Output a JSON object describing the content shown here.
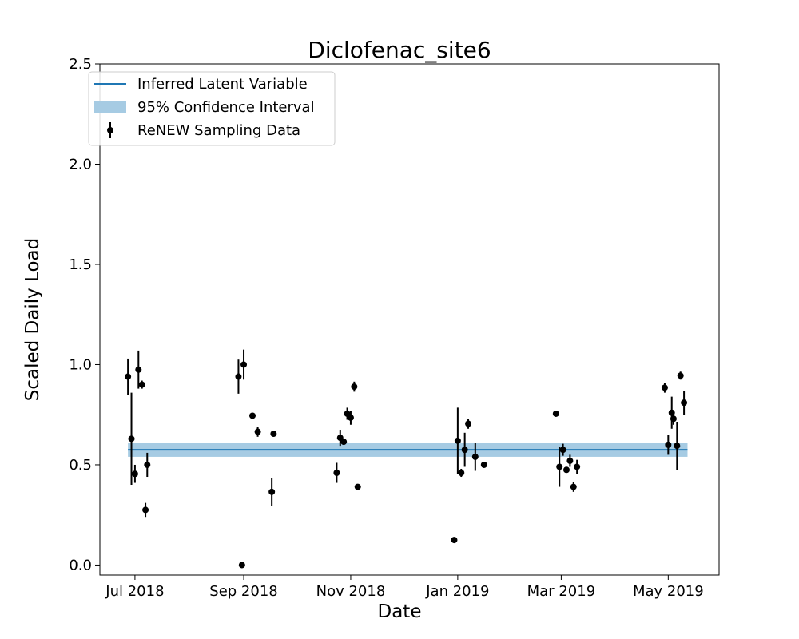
{
  "chart_data": {
    "type": "scatter",
    "title": "Diclofenac_site6",
    "xlabel": "Date",
    "ylabel": "Scaled Daily Load",
    "x_unit": "days since 2018-07-01",
    "xlim": [
      -20,
      333
    ],
    "ylim": [
      -0.05,
      2.5
    ],
    "x_ticks": [
      {
        "value": 0,
        "label": "Jul 2018"
      },
      {
        "value": 62,
        "label": "Sep 2018"
      },
      {
        "value": 123,
        "label": "Nov 2018"
      },
      {
        "value": 184,
        "label": "Jan 2019"
      },
      {
        "value": 243,
        "label": "Mar 2019"
      },
      {
        "value": 304,
        "label": "May 2019"
      }
    ],
    "y_ticks": [
      {
        "value": 0.0,
        "label": "0.0"
      },
      {
        "value": 0.5,
        "label": "0.5"
      },
      {
        "value": 1.0,
        "label": "1.0"
      },
      {
        "value": 1.5,
        "label": "1.5"
      },
      {
        "value": 2.0,
        "label": "2.0"
      },
      {
        "value": 2.5,
        "label": "2.5"
      }
    ],
    "legend": {
      "placement": "top-left",
      "entries": [
        "Inferred Latent Variable",
        "95% Confidence Interval",
        "ReNEW Sampling Data"
      ]
    },
    "colors": {
      "latent": "#1f77b4",
      "ci": "#a6cbe3",
      "points": "#000000"
    },
    "latent": {
      "x_start": -4,
      "x_end": 315,
      "value": 0.575,
      "ci_low": 0.54,
      "ci_high": 0.61
    },
    "series": [
      {
        "name": "ReNEW Sampling Data",
        "points": [
          {
            "x": -4,
            "y": 0.94,
            "err": 0.09
          },
          {
            "x": -2,
            "y": 0.63,
            "err": 0.23
          },
          {
            "x": 0,
            "y": 0.455,
            "err": 0.045
          },
          {
            "x": 2,
            "y": 0.975,
            "err": 0.095
          },
          {
            "x": 4,
            "y": 0.9,
            "err": 0.02
          },
          {
            "x": 6,
            "y": 0.275,
            "err": 0.035
          },
          {
            "x": 7,
            "y": 0.5,
            "err": 0.06
          },
          {
            "x": 59,
            "y": 0.94,
            "err": 0.085
          },
          {
            "x": 61,
            "y": 0.0,
            "err": 0.0
          },
          {
            "x": 62,
            "y": 1.0,
            "err": 0.075
          },
          {
            "x": 67,
            "y": 0.745,
            "err": 0.01
          },
          {
            "x": 70,
            "y": 0.665,
            "err": 0.025
          },
          {
            "x": 78,
            "y": 0.365,
            "err": 0.07
          },
          {
            "x": 79,
            "y": 0.655,
            "err": 0.01
          },
          {
            "x": 115,
            "y": 0.46,
            "err": 0.05
          },
          {
            "x": 117,
            "y": 0.635,
            "err": 0.04
          },
          {
            "x": 119,
            "y": 0.615,
            "err": 0.01
          },
          {
            "x": 121,
            "y": 0.755,
            "err": 0.03
          },
          {
            "x": 123,
            "y": 0.735,
            "err": 0.035
          },
          {
            "x": 125,
            "y": 0.89,
            "err": 0.025
          },
          {
            "x": 127,
            "y": 0.39,
            "err": 0.01
          },
          {
            "x": 182,
            "y": 0.125,
            "err": 0.0
          },
          {
            "x": 184,
            "y": 0.62,
            "err": 0.165
          },
          {
            "x": 186,
            "y": 0.46,
            "err": 0.02
          },
          {
            "x": 188,
            "y": 0.575,
            "err": 0.085
          },
          {
            "x": 190,
            "y": 0.705,
            "err": 0.025
          },
          {
            "x": 194,
            "y": 0.54,
            "err": 0.07
          },
          {
            "x": 199,
            "y": 0.5,
            "err": 0.01
          },
          {
            "x": 240,
            "y": 0.755,
            "err": 0.01
          },
          {
            "x": 242,
            "y": 0.49,
            "err": 0.1
          },
          {
            "x": 244,
            "y": 0.575,
            "err": 0.03
          },
          {
            "x": 246,
            "y": 0.475,
            "err": 0.01
          },
          {
            "x": 248,
            "y": 0.52,
            "err": 0.03
          },
          {
            "x": 250,
            "y": 0.39,
            "err": 0.025
          },
          {
            "x": 252,
            "y": 0.49,
            "err": 0.035
          },
          {
            "x": 302,
            "y": 0.885,
            "err": 0.025
          },
          {
            "x": 304,
            "y": 0.6,
            "err": 0.05
          },
          {
            "x": 306,
            "y": 0.76,
            "err": 0.08
          },
          {
            "x": 307,
            "y": 0.73,
            "err": 0.03
          },
          {
            "x": 309,
            "y": 0.595,
            "err": 0.12
          },
          {
            "x": 311,
            "y": 0.945,
            "err": 0.02
          },
          {
            "x": 313,
            "y": 0.81,
            "err": 0.06
          }
        ]
      }
    ]
  }
}
